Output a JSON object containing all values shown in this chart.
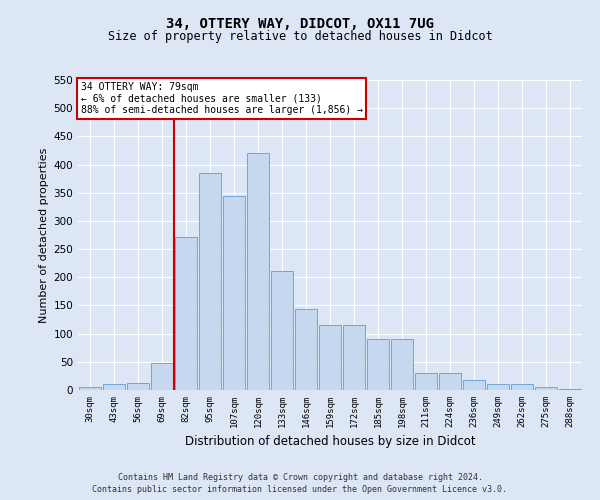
{
  "title1": "34, OTTERY WAY, DIDCOT, OX11 7UG",
  "title2": "Size of property relative to detached houses in Didcot",
  "xlabel": "Distribution of detached houses by size in Didcot",
  "ylabel": "Number of detached properties",
  "categories": [
    "30sqm",
    "43sqm",
    "56sqm",
    "69sqm",
    "82sqm",
    "95sqm",
    "107sqm",
    "120sqm",
    "133sqm",
    "146sqm",
    "159sqm",
    "172sqm",
    "185sqm",
    "198sqm",
    "211sqm",
    "224sqm",
    "236sqm",
    "249sqm",
    "262sqm",
    "275sqm",
    "288sqm"
  ],
  "values": [
    5,
    10,
    12,
    48,
    272,
    385,
    345,
    420,
    212,
    143,
    115,
    115,
    90,
    90,
    30,
    30,
    18,
    10,
    10,
    5,
    2
  ],
  "bar_color": "#c5d8f0",
  "bar_edge_color": "#6fa8d4",
  "vline_color": "#cc0000",
  "vline_index": 4.0,
  "ylim": [
    0,
    550
  ],
  "yticks": [
    0,
    50,
    100,
    150,
    200,
    250,
    300,
    350,
    400,
    450,
    500,
    550
  ],
  "annotation_text": "34 OTTERY WAY: 79sqm\n← 6% of detached houses are smaller (133)\n88% of semi-detached houses are larger (1,856) →",
  "annotation_box_color": "#ffffff",
  "annotation_box_edge": "#cc0000",
  "footer1": "Contains HM Land Registry data © Crown copyright and database right 2024.",
  "footer2": "Contains public sector information licensed under the Open Government Licence v3.0.",
  "bg_color": "#dce6f5",
  "plot_bg_color": "#dce6f5"
}
